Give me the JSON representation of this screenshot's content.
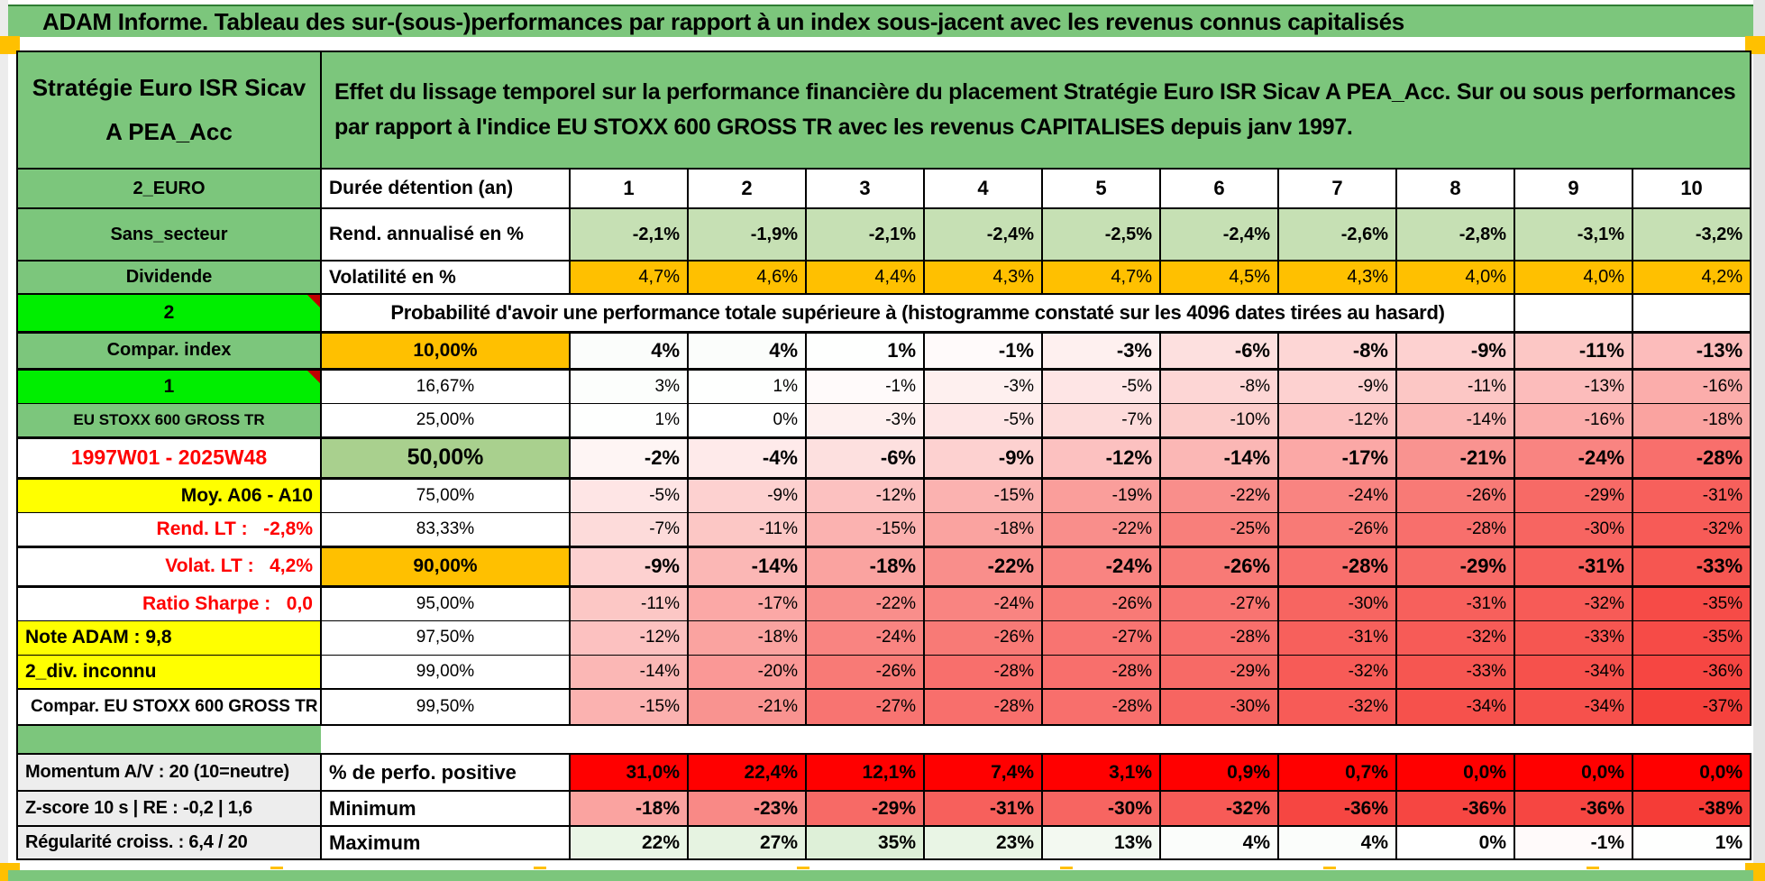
{
  "title": "ADAM Informe. Tableau des sur-(sous-)performances par rapport à un index sous-jacent avec les revenus connus capitalisés",
  "header": {
    "product": "Stratégie Euro ISR Sicav A PEA_Acc",
    "description": "Effet du lissage temporel sur la performance financière du placement Stratégie Euro ISR Sicav A PEA_Acc. Sur ou sous performances par rapport à l'indice EU STOXX 600 GROSS TR avec les revenus CAPITALISES depuis janv 1997."
  },
  "colors": {
    "green_header": "#7cc67c",
    "bright_green": "#00ee00",
    "light_green_row": "#c6e0b4",
    "mid_green_cell": "#a9d08e",
    "orange": "#ffc000",
    "yellow": "#ffff00",
    "red_solid": "#ff0000",
    "gray_label": "#ededed",
    "neg_scale_end": "#f53c37",
    "pos_scale_end": "#def0d8"
  },
  "top_rows": [
    {
      "a": "2_EURO",
      "b": "Durée détention (an)",
      "values": [
        "1",
        "2",
        "3",
        "4",
        "5",
        "6",
        "7",
        "8",
        "9",
        "10"
      ]
    },
    {
      "a": "Sans_secteur",
      "b": "Rend. annualisé en %",
      "values": [
        "-2,1%",
        "-1,9%",
        "-2,1%",
        "-2,4%",
        "-2,5%",
        "-2,4%",
        "-2,6%",
        "-2,8%",
        "-3,1%",
        "-3,2%"
      ]
    },
    {
      "a": "Dividende",
      "b": "Volatilité en %",
      "values": [
        "4,7%",
        "4,6%",
        "4,4%",
        "4,3%",
        "4,7%",
        "4,5%",
        "4,3%",
        "4,0%",
        "4,0%",
        "4,2%"
      ]
    }
  ],
  "probability_banner": {
    "a": "2",
    "text": "Probabilité d'avoir une performance totale supérieure à (histogramme constaté sur les 4096 dates tirées au hasard)"
  },
  "matrix_rows": [
    {
      "a": "Compar. index",
      "a_class": "a-green",
      "b": "10,00%",
      "b_class": "b-orange",
      "row_class": "m-first m-emph",
      "note": false,
      "values": [
        "4%",
        "4%",
        "1%",
        "-1%",
        "-3%",
        "-6%",
        "-8%",
        "-9%",
        "-11%",
        "-13%"
      ]
    },
    {
      "a": "1",
      "a_class": "a-bright",
      "b": "16,67%",
      "b_class": "b-plain",
      "row_class": "m-thin",
      "note": true,
      "values": [
        "3%",
        "1%",
        "-1%",
        "-3%",
        "-5%",
        "-8%",
        "-9%",
        "-11%",
        "-13%",
        "-16%"
      ]
    },
    {
      "a": "EU STOXX 600 GROSS TR",
      "a_class": "a-green-sm",
      "b": "25,00%",
      "b_class": "b-plain",
      "row_class": "m-thin",
      "note": false,
      "values": [
        "1%",
        "0%",
        "-3%",
        "-5%",
        "-7%",
        "-10%",
        "-12%",
        "-14%",
        "-16%",
        "-18%"
      ]
    },
    {
      "a": "1997W01 - 2025W48",
      "a_class": "a-red-date",
      "b": "50,00%",
      "b_class": "b-green",
      "row_class": "m-big m-emph",
      "note": false,
      "values": [
        "-2%",
        "-4%",
        "-6%",
        "-9%",
        "-12%",
        "-14%",
        "-17%",
        "-21%",
        "-24%",
        "-28%"
      ]
    },
    {
      "a": "Moy. A06 - A10",
      "a_class": "a-yellow-right",
      "b": "75,00%",
      "b_class": "b-plain",
      "row_class": "m-thin",
      "note": false,
      "values": [
        "-5%",
        "-9%",
        "-12%",
        "-15%",
        "-19%",
        "-22%",
        "-24%",
        "-26%",
        "-29%",
        "-31%"
      ]
    },
    {
      "a": "Rend. LT :   -2,8%",
      "a_class": "a-red-right",
      "b": "83,33%",
      "b_class": "b-plain",
      "row_class": "m-thin",
      "note": false,
      "values": [
        "-7%",
        "-11%",
        "-15%",
        "-18%",
        "-22%",
        "-25%",
        "-26%",
        "-28%",
        "-30%",
        "-32%"
      ]
    },
    {
      "a": "Volat. LT :   4,2%",
      "a_class": "a-red-right",
      "b": "90,00%",
      "b_class": "b-orange",
      "row_class": "m-emph",
      "note": false,
      "values": [
        "-9%",
        "-14%",
        "-18%",
        "-22%",
        "-24%",
        "-26%",
        "-28%",
        "-29%",
        "-31%",
        "-33%"
      ]
    },
    {
      "a": "Ratio Sharpe :   0,0",
      "a_class": "a-red-right",
      "b": "95,00%",
      "b_class": "b-plain",
      "row_class": "m-thin",
      "note": false,
      "values": [
        "-11%",
        "-17%",
        "-22%",
        "-24%",
        "-26%",
        "-27%",
        "-30%",
        "-31%",
        "-32%",
        "-35%"
      ]
    },
    {
      "a": "Note ADAM : 9,8",
      "a_class": "a-yellow-left",
      "b": "97,50%",
      "b_class": "b-plain",
      "row_class": "m-thin",
      "note": false,
      "values": [
        "-12%",
        "-18%",
        "-24%",
        "-26%",
        "-27%",
        "-28%",
        "-31%",
        "-32%",
        "-33%",
        "-35%"
      ]
    },
    {
      "a": "2_div. inconnu",
      "a_class": "a-yellow-left",
      "b": "99,00%",
      "b_class": "b-plain",
      "row_class": "m-thin",
      "note": false,
      "values": [
        "-14%",
        "-20%",
        "-26%",
        "-28%",
        "-28%",
        "-29%",
        "-32%",
        "-33%",
        "-34%",
        "-36%"
      ]
    },
    {
      "a": "Compar. EU STOXX 600 GROSS TR",
      "a_class": "a-white-left",
      "b": "99,50%",
      "b_class": "b-plain",
      "row_class": "m-last",
      "note": false,
      "values": [
        "-15%",
        "-21%",
        "-27%",
        "-28%",
        "-28%",
        "-30%",
        "-32%",
        "-34%",
        "-34%",
        "-37%"
      ]
    }
  ],
  "bottom_rows": [
    {
      "a": "Momentum A/V : 20 (10=neutre)",
      "b": "% de perfo. positive",
      "fill": "red",
      "row_class": "bot0",
      "values": [
        "31,0%",
        "22,4%",
        "12,1%",
        "7,4%",
        "3,1%",
        "0,9%",
        "0,7%",
        "0,0%",
        "0,0%",
        "0,0%"
      ]
    },
    {
      "a": "Z-score 10 s | RE : -0,2 | 1,6",
      "b": "Minimum",
      "fill": "scale",
      "row_class": "bot1",
      "values": [
        "-18%",
        "-23%",
        "-29%",
        "-31%",
        "-30%",
        "-32%",
        "-36%",
        "-36%",
        "-36%",
        "-38%"
      ]
    },
    {
      "a": "Régularité croiss. : 6,4 / 20",
      "b": "Maximum",
      "fill": "scale",
      "row_class": "bot2",
      "values": [
        "22%",
        "27%",
        "35%",
        "23%",
        "13%",
        "4%",
        "4%",
        "0%",
        "-1%",
        "1%"
      ]
    }
  ]
}
